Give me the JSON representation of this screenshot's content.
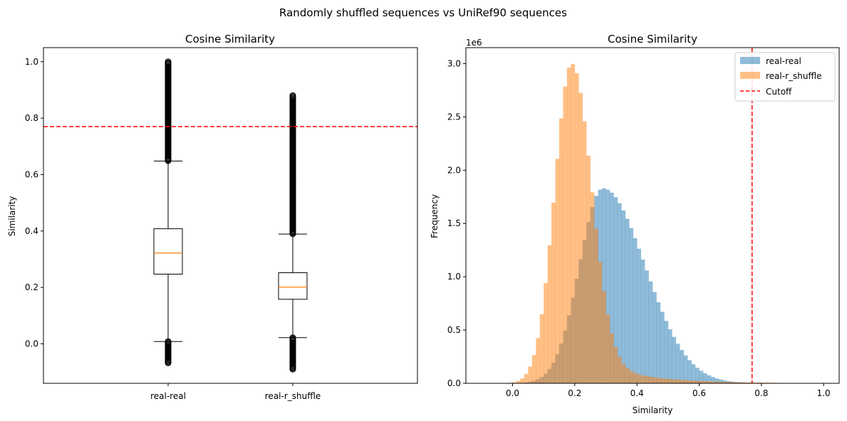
{
  "figure": {
    "suptitle": "Randomly shuffled sequences vs UniRef90 sequences"
  },
  "chart_data": [
    {
      "type": "box",
      "title": "Cosine Similarity",
      "xlabel": "",
      "ylabel": "Similarity",
      "categories": [
        "real-real",
        "real-r_shuffle"
      ],
      "ylim": [
        -0.14,
        1.05
      ],
      "yticks": [
        0.0,
        0.2,
        0.4,
        0.6,
        0.8,
        1.0
      ],
      "ytick_labels": [
        "0.0",
        "0.2",
        "0.4",
        "0.6",
        "0.8",
        "1.0"
      ],
      "boxes": [
        {
          "category": "real-real",
          "q1": 0.247,
          "median": 0.322,
          "q3": 0.408,
          "whisker_low": 0.008,
          "whisker_high": 0.648,
          "flier_low": [
            -0.07,
            0.008
          ],
          "flier_high": [
            0.648,
            1.0
          ]
        },
        {
          "category": "real-r_shuffle",
          "q1": 0.158,
          "median": 0.201,
          "q3": 0.252,
          "whisker_low": 0.022,
          "whisker_high": 0.389,
          "flier_low": [
            -0.09,
            0.022
          ],
          "flier_high": [
            0.389,
            0.88
          ]
        }
      ],
      "cutoff": 0.77,
      "colors": {
        "median": "#ff7f0e",
        "cutoff": "#ff0000",
        "box": "#000000"
      }
    },
    {
      "type": "histogram",
      "title": "Cosine Similarity",
      "xlabel": "Similarity",
      "ylabel": "Frequency",
      "y_offset_label": "1e6",
      "xlim": [
        -0.15,
        1.05
      ],
      "ylim": [
        0,
        3.15
      ],
      "xticks": [
        0.0,
        0.2,
        0.4,
        0.6,
        0.8,
        1.0
      ],
      "xtick_labels": [
        "0.0",
        "0.2",
        "0.4",
        "0.6",
        "0.8",
        "1.0"
      ],
      "yticks": [
        0.0,
        0.5,
        1.0,
        1.5,
        2.0,
        2.5,
        3.0
      ],
      "ytick_labels": [
        "0.0",
        "0.5",
        "1.0",
        "1.5",
        "2.0",
        "2.5",
        "3.0"
      ],
      "bin_width": 0.0125,
      "series": [
        {
          "name": "real-real",
          "color": "#1f77b4",
          "opacity": 0.5,
          "distribution": {
            "mode": 0.29,
            "peak": 1.83,
            "sigma_left": 0.075,
            "sigma_right": 0.135,
            "x_min": -0.05,
            "x_max": 0.83
          }
        },
        {
          "name": "real-r_shuffle",
          "color": "#ff7f0e",
          "opacity": 0.5,
          "distribution": {
            "mode": 0.19,
            "peak": 3.0,
            "sigma_left": 0.055,
            "sigma_right": 0.062,
            "tail_amp": 0.14,
            "tail_scale": 0.16,
            "x_min": -0.07,
            "x_max": 0.85
          }
        }
      ],
      "cutoff": {
        "name": "Cutoff",
        "value": 0.77,
        "color": "#ff0000"
      },
      "legend_position": "top-right"
    }
  ]
}
